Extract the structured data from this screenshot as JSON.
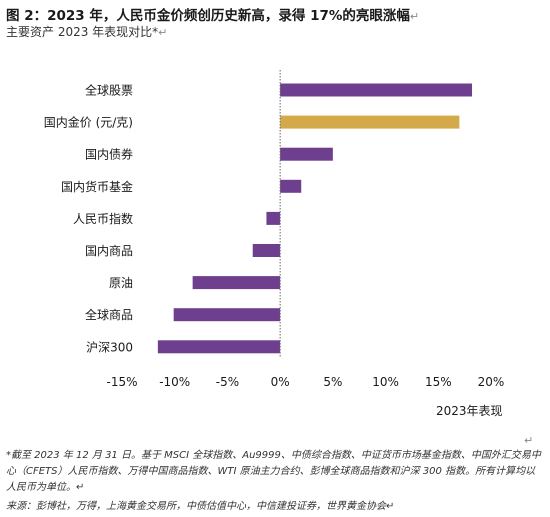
{
  "title": "图 2：2023 年，人民币金价频创历史新高，录得 17%的亮眼涨幅",
  "subtitle": "主要资产 2023 年表现对比*",
  "para_mark": "↵",
  "footnote": "*截至 2023 年 12 月 31 日。基于 MSCI 全球指数、Au9999、中债综合指数、中证货币市场基金指数、中国外汇交易中心（CFETS）人民币指数、万得中国商品指数、WTI 原油主力合约、彭博全球商品指数和沪深 300 指数。所有计算均以人民币为单位。",
  "source": "来源：彭博社，万得，上海黄金交易所，中债估值中心，中信建投证券，世界黄金协会",
  "colors": {
    "default": "#6f3f8f",
    "highlight": "#d4a94a"
  },
  "chart_data": {
    "type": "bar",
    "orientation": "horizontal",
    "xlabel": "2023年表现",
    "xlim": [
      -15,
      20
    ],
    "xticks": [
      -15,
      -10,
      -5,
      0,
      5,
      10,
      15,
      20
    ],
    "xtick_labels": [
      "-15%",
      "-10%",
      "-5%",
      "0%",
      "5%",
      "10%",
      "15%",
      "20%"
    ],
    "categories": [
      "全球股票",
      "国内金价 (元/克)",
      "国内债券",
      "国内货币基金",
      "人民币指数",
      "国内商品",
      "原油",
      "全球商品",
      "沪深300"
    ],
    "values": [
      18.2,
      17.0,
      5.0,
      2.0,
      -1.3,
      -2.6,
      -8.3,
      -10.1,
      -11.6
    ],
    "highlight_index": 1
  }
}
